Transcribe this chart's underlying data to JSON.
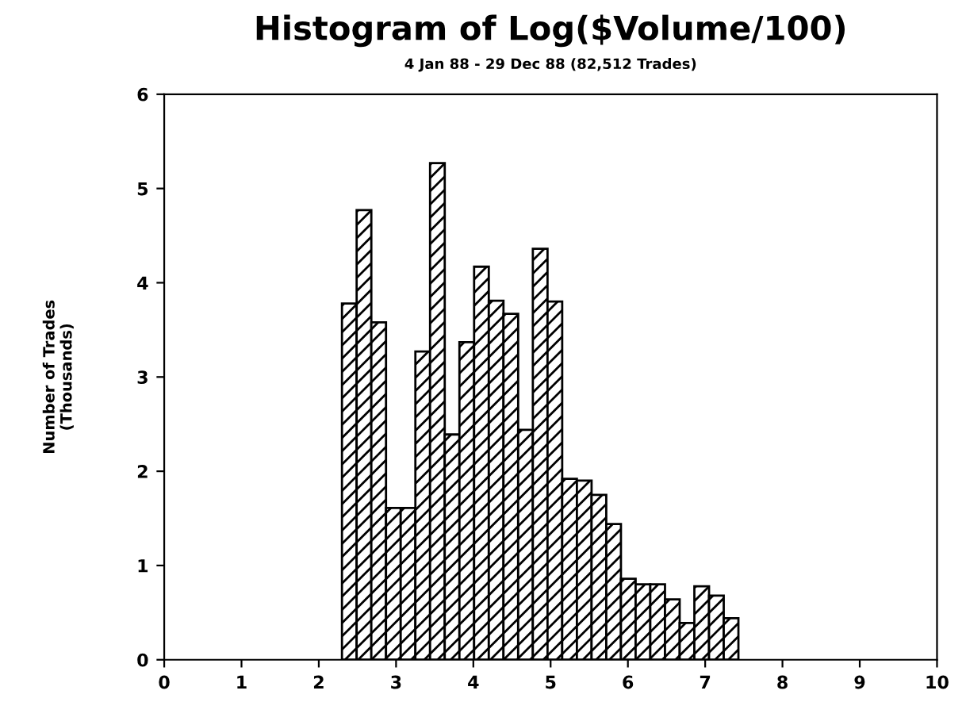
{
  "chart_data": {
    "type": "histogram",
    "title": "Histogram of Log($Volume/100)",
    "subtitle": "4 Jan 88 - 29 Dec 88 (82,512 Trades)",
    "ylabel": "Number of Trades\n(Thousands)",
    "bins": [
      2.3,
      2.49,
      2.68,
      2.87,
      3.06,
      3.25,
      3.44,
      3.63,
      3.82,
      4.01,
      4.2,
      4.39,
      4.58,
      4.77,
      4.96,
      5.15,
      5.34,
      5.53,
      5.72,
      5.91,
      6.1,
      6.29,
      6.48,
      6.67,
      6.86,
      7.05,
      7.24,
      7.43
    ],
    "values": [
      3.78,
      4.77,
      3.58,
      1.61,
      1.61,
      3.27,
      5.27,
      2.39,
      3.37,
      4.17,
      3.81,
      3.67,
      2.44,
      4.36,
      3.8,
      1.92,
      1.9,
      1.75,
      1.44,
      0.86,
      0.8,
      0.8,
      0.64,
      0.39,
      0.78,
      0.68,
      0.44
    ],
    "color": "#000000",
    "xlim": [
      0,
      10
    ],
    "xticks": [
      0,
      1,
      2,
      3,
      4,
      5,
      6,
      7,
      8,
      9,
      10
    ],
    "ylim": [
      0,
      6
    ],
    "yticks": [
      0,
      1,
      2,
      3,
      4,
      5,
      6
    ],
    "grid": false,
    "legend": false
  }
}
